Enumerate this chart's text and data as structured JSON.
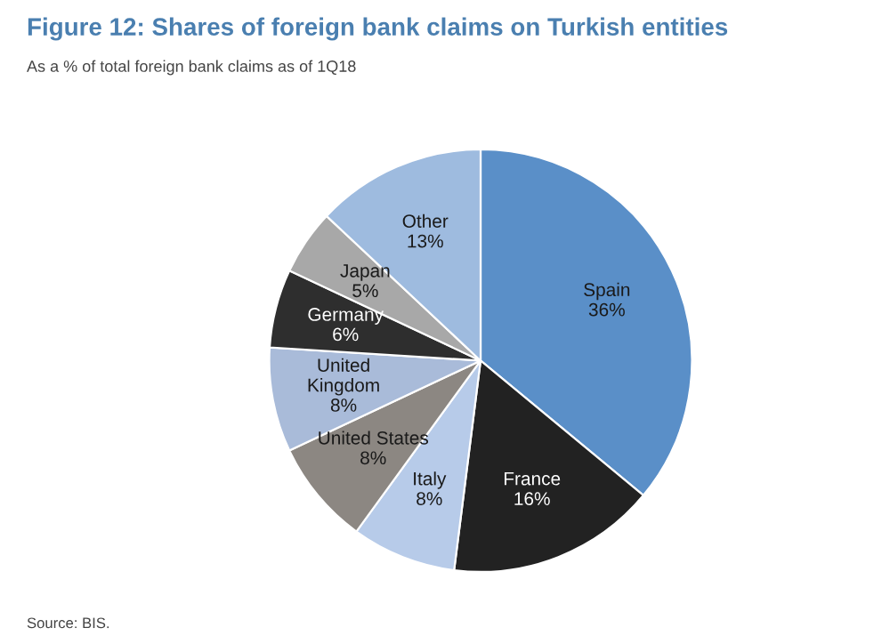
{
  "chart_data": {
    "type": "pie",
    "title": "Figure 12: Shares of foreign bank claims on Turkish entities",
    "subtitle": "As a % of total foreign bank claims as of 1Q18",
    "categories": [
      "Spain",
      "France",
      "Italy",
      "United States",
      "United\nKingdom",
      "Germany",
      "Japan",
      "Other"
    ],
    "values": [
      36,
      16,
      8,
      8,
      8,
      6,
      5,
      13
    ],
    "value_labels": [
      "36%",
      "16%",
      "8%",
      "8%",
      "8%",
      "6%",
      "5%",
      "13%"
    ],
    "colors": [
      "#5a8fc8",
      "#222222",
      "#b7cbe9",
      "#8c8782",
      "#a9bbd9",
      "#2e2e2e",
      "#a8a8a8",
      "#9ebbdf"
    ],
    "annotations": [
      "Source: BIS."
    ]
  }
}
